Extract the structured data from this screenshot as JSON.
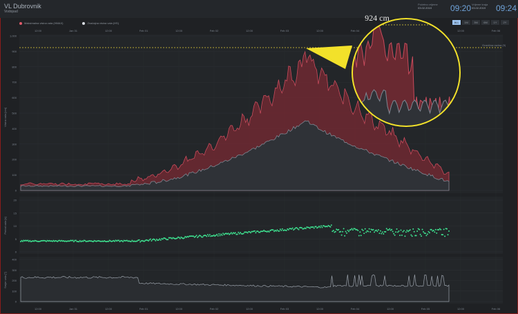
{
  "header": {
    "title": "VL Dubrovnik",
    "subtitle": "Vodopad",
    "start_label": "Početno vrijeme",
    "start_date": "03.02.2019",
    "start_time": "09:20",
    "end_label": "Vrijeme kraja",
    "end_date": "03.02.2019",
    "end_time": "09:24"
  },
  "zoom_buttons": [
    "ALL",
    "1M",
    "3M",
    "6M",
    "1Y",
    "2Y"
  ],
  "legend": [
    {
      "label": "Maksimalna visina vala (HMAX)",
      "color": "#e05a6a"
    },
    {
      "label": "Značajna visina vala (HS)",
      "color": "#d9dde3"
    }
  ],
  "top_axis_ticks": [
    "12:00",
    "Jan 31",
    "12:00",
    "Feb 01",
    "12:00",
    "Feb 02",
    "12:00",
    "Feb 03",
    "12:00",
    "Feb 04",
    "12:00",
    "Feb 05",
    "12:00",
    "Feb 06"
  ],
  "bottom_axis_ticks": [
    "12:00",
    "Jan 31",
    "12:00",
    "Feb 01",
    "12:00",
    "Feb 02",
    "12:00",
    "Feb 03",
    "12:00",
    "Feb 04",
    "12:00",
    "Feb 05",
    "12:00",
    "Feb 06"
  ],
  "panel1": {
    "y_label": "Visina vala [cm]",
    "y_ticks": [
      "1,000",
      "900",
      "800",
      "700",
      "600",
      "500",
      "400",
      "300",
      "200",
      "100",
      "0"
    ],
    "threshold_label": "Granična razina (9)",
    "threshold_value": 924
  },
  "panel2": {
    "y_label": "Period vala [s]",
    "y_ticks": [
      "20",
      "15",
      "10",
      "5",
      "0"
    ]
  },
  "panel3": {
    "y_label": "Smjer vala [°]",
    "y_ticks": [
      "400",
      "300",
      "200",
      "100",
      "0"
    ]
  },
  "callout": {
    "label": "924 cm"
  },
  "colors": {
    "hmax": "#c84b5c",
    "hs": "#7f8792",
    "period": "#3ee08f",
    "direction": "#9aa1aa",
    "callout": "#f2e12a"
  }
}
